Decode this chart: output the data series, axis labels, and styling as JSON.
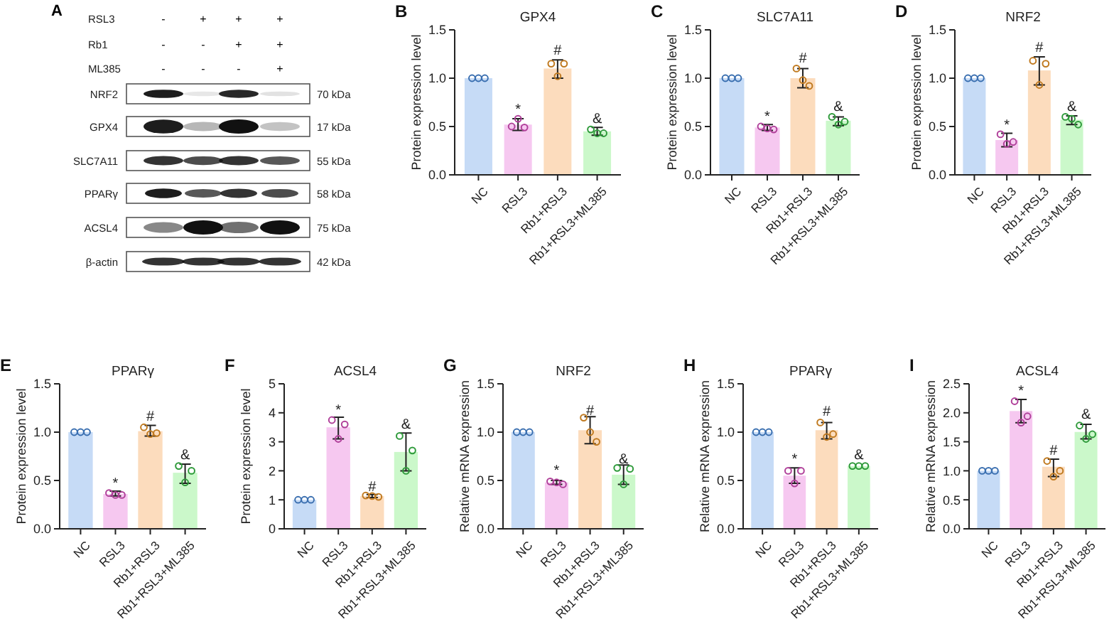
{
  "chart_data": [
    {
      "type": "other",
      "annotations": [
        "A",
        "RSL3",
        "Rb1",
        "ML385",
        "-",
        "+",
        "+",
        "+",
        "-",
        "-",
        "+",
        "+",
        "-",
        "-",
        "-",
        "+",
        "NRF2",
        "GPX4",
        "SLC7A11",
        "PPARγ",
        "ACSL4",
        "β-actin",
        "70  kDa",
        "17  kDa",
        "55  kDa",
        "58  kDa",
        "75  kDa",
        "42  kDa"
      ]
    },
    {
      "type": "bar",
      "title": "GPX4",
      "ylabel": "Protein expression level",
      "categories": [
        "NC",
        "RSL3",
        "Rb1+RSL3",
        "Rb1+RSL3+ML385"
      ],
      "ylim": [
        0,
        1.5
      ],
      "yticks": [
        {
          "value": 0,
          "label": "0.0"
        },
        {
          "value": 0.5,
          "label": "0.5"
        },
        {
          "value": 1,
          "label": "1.0"
        },
        {
          "value": 1.5,
          "label": "1.5"
        }
      ],
      "grid": false,
      "legend": false,
      "annotations": [
        "B",
        {
          "text": "*",
          "x": "RSL3",
          "y": 0.63
        },
        {
          "text": "#",
          "x": "Rb1+RSL3",
          "y": 1.24
        },
        {
          "text": "&",
          "x": "Rb1+RSL3+ML385",
          "y": 0.54
        }
      ],
      "series": [
        {
          "type": "bar",
          "values": [
            1,
            0.52,
            1.1,
            0.45
          ],
          "colors": [
            "#c6dbf6",
            "#f6c8f0",
            "#fcdcbd",
            "#cbf8ca"
          ],
          "errors": [
            null,
            [
              0.46,
              0.58
            ],
            [
              1.0,
              1.19
            ],
            [
              0.41,
              0.49
            ]
          ]
        },
        {
          "type": "scatter",
          "marker": "circle",
          "x": [
            "NC",
            "NC",
            "NC",
            "RSL3",
            "RSL3",
            "RSL3",
            "Rb1+RSL3",
            "Rb1+RSL3",
            "Rb1+RSL3",
            "Rb1+RSL3+ML385",
            "Rb1+RSL3+ML385",
            "Rb1+RSL3+ML385"
          ],
          "values": [
            1,
            1,
            1,
            0.5,
            0.58,
            0.49,
            1.15,
            1.02,
            1.15,
            0.47,
            0.43,
            0.43
          ],
          "colors": [
            "#3a6fb0",
            "#3a6fb0",
            "#3a6fb0",
            "#b0409a",
            "#b0409a",
            "#b0409a",
            "#c07a20",
            "#c07a20",
            "#c07a20",
            "#2e9a3a",
            "#2e9a3a",
            "#2e9a3a"
          ]
        }
      ]
    },
    {
      "type": "bar",
      "title": "SLC7A11",
      "ylabel": "Protein expression level",
      "categories": [
        "NC",
        "RSL3",
        "Rb1+RSL3",
        "Rb1+RSL3+ML385"
      ],
      "ylim": [
        0,
        1.5
      ],
      "yticks": [
        {
          "value": 0,
          "label": "0.0"
        },
        {
          "value": 0.5,
          "label": "0.5"
        },
        {
          "value": 1,
          "label": "1.0"
        },
        {
          "value": 1.5,
          "label": "1.5"
        }
      ],
      "grid": false,
      "legend": false,
      "annotations": [
        "C",
        {
          "text": "*",
          "x": "RSL3",
          "y": 0.56
        },
        {
          "text": "#",
          "x": "Rb1+RSL3",
          "y": 1.16
        },
        {
          "text": "&",
          "x": "Rb1+RSL3+ML385",
          "y": 0.66
        }
      ],
      "series": [
        {
          "type": "bar",
          "values": [
            1,
            0.49,
            1.0,
            0.56
          ],
          "colors": [
            "#c6dbf6",
            "#f6c8f0",
            "#fcdcbd",
            "#cbf8ca"
          ],
          "errors": [
            null,
            [
              0.46,
              0.52
            ],
            [
              0.9,
              1.1
            ],
            [
              0.51,
              0.6
            ]
          ]
        },
        {
          "type": "scatter",
          "marker": "circle",
          "x": [
            "NC",
            "NC",
            "NC",
            "RSL3",
            "RSL3",
            "RSL3",
            "Rb1+RSL3",
            "Rb1+RSL3",
            "Rb1+RSL3",
            "Rb1+RSL3+ML385",
            "Rb1+RSL3+ML385",
            "Rb1+RSL3+ML385"
          ],
          "values": [
            1,
            1,
            1,
            0.5,
            0.48,
            0.47,
            1.1,
            0.98,
            0.92,
            0.6,
            0.52,
            0.55
          ],
          "colors": [
            "#3a6fb0",
            "#3a6fb0",
            "#3a6fb0",
            "#b0409a",
            "#b0409a",
            "#b0409a",
            "#c07a20",
            "#c07a20",
            "#c07a20",
            "#2e9a3a",
            "#2e9a3a",
            "#2e9a3a"
          ]
        }
      ]
    },
    {
      "type": "bar",
      "title": "NRF2",
      "ylabel": "Protein expression level",
      "categories": [
        "NC",
        "RSL3",
        "Rb1+RSL3",
        "Rb1+RSL3+ML385"
      ],
      "ylim": [
        0,
        1.5
      ],
      "yticks": [
        {
          "value": 0,
          "label": "0.0"
        },
        {
          "value": 0.5,
          "label": "0.5"
        },
        {
          "value": 1,
          "label": "1.0"
        },
        {
          "value": 1.5,
          "label": "1.5"
        }
      ],
      "grid": false,
      "legend": false,
      "annotations": [
        "D",
        {
          "text": "*",
          "x": "RSL3",
          "y": 0.47
        },
        {
          "text": "#",
          "x": "Rb1+RSL3",
          "y": 1.27
        },
        {
          "text": "&",
          "x": "Rb1+RSL3+ML385",
          "y": 0.66
        }
      ],
      "series": [
        {
          "type": "bar",
          "values": [
            1,
            0.36,
            1.08,
            0.57
          ],
          "colors": [
            "#c6dbf6",
            "#f6c8f0",
            "#fcdcbd",
            "#cbf8ca"
          ],
          "errors": [
            null,
            [
              0.29,
              0.43
            ],
            [
              0.93,
              1.22
            ],
            [
              0.52,
              0.61
            ]
          ]
        },
        {
          "type": "scatter",
          "marker": "circle",
          "x": [
            "NC",
            "NC",
            "NC",
            "RSL3",
            "RSL3",
            "RSL3",
            "Rb1+RSL3",
            "Rb1+RSL3",
            "Rb1+RSL3",
            "Rb1+RSL3+ML385",
            "Rb1+RSL3+ML385",
            "Rb1+RSL3+ML385"
          ],
          "values": [
            1,
            1,
            1,
            0.42,
            0.32,
            0.34,
            1.18,
            0.93,
            1.15,
            0.6,
            0.58,
            0.52
          ],
          "colors": [
            "#3a6fb0",
            "#3a6fb0",
            "#3a6fb0",
            "#b0409a",
            "#b0409a",
            "#b0409a",
            "#c07a20",
            "#c07a20",
            "#c07a20",
            "#2e9a3a",
            "#2e9a3a",
            "#2e9a3a"
          ]
        }
      ]
    },
    {
      "type": "bar",
      "title": "PPARγ",
      "ylabel": "Protein expression level",
      "categories": [
        "NC",
        "RSL3",
        "Rb1+RSL3",
        "Rb1+RSL3+ML385"
      ],
      "ylim": [
        0,
        1.5
      ],
      "yticks": [
        {
          "value": 0,
          "label": "0.0"
        },
        {
          "value": 0.5,
          "label": "0.5"
        },
        {
          "value": 1,
          "label": "1.0"
        },
        {
          "value": 1.5,
          "label": "1.5"
        }
      ],
      "grid": false,
      "legend": false,
      "annotations": [
        "E",
        {
          "text": "*",
          "x": "RSL3",
          "y": 0.43
        },
        {
          "text": "#",
          "x": "Rb1+RSL3",
          "y": 1.12
        },
        {
          "text": "&",
          "x": "Rb1+RSL3+ML385",
          "y": 0.72
        }
      ],
      "series": [
        {
          "type": "bar",
          "values": [
            1,
            0.36,
            1.01,
            0.58
          ],
          "colors": [
            "#c6dbf6",
            "#f6c8f0",
            "#fcdcbd",
            "#cbf8ca"
          ],
          "errors": [
            null,
            [
              0.34,
              0.39
            ],
            [
              0.96,
              1.07
            ],
            [
              0.47,
              0.67
            ]
          ]
        },
        {
          "type": "scatter",
          "marker": "circle",
          "x": [
            "NC",
            "NC",
            "NC",
            "RSL3",
            "RSL3",
            "RSL3",
            "Rb1+RSL3",
            "Rb1+RSL3",
            "Rb1+RSL3",
            "Rb1+RSL3+ML385",
            "Rb1+RSL3+ML385",
            "Rb1+RSL3+ML385"
          ],
          "values": [
            1,
            1,
            1,
            0.37,
            0.35,
            0.35,
            1.05,
            0.98,
            0.99,
            0.65,
            0.48,
            0.6
          ],
          "colors": [
            "#3a6fb0",
            "#3a6fb0",
            "#3a6fb0",
            "#b0409a",
            "#b0409a",
            "#b0409a",
            "#c07a20",
            "#c07a20",
            "#c07a20",
            "#2e9a3a",
            "#2e9a3a",
            "#2e9a3a"
          ]
        }
      ]
    },
    {
      "type": "bar",
      "title": "ACSL4",
      "ylabel": "Protein expression level",
      "categories": [
        "NC",
        "RSL3",
        "Rb1+RSL3",
        "Rb1+RSL3+ML385"
      ],
      "ylim": [
        0,
        5
      ],
      "yticks": [
        0,
        1,
        2,
        3,
        4,
        5
      ],
      "grid": false,
      "legend": false,
      "annotations": [
        "F",
        {
          "text": "*",
          "x": "RSL3",
          "y": 3.95
        },
        {
          "text": "#",
          "x": "Rb1+RSL3",
          "y": 1.3
        },
        {
          "text": "&",
          "x": "Rb1+RSL3+ML385",
          "y": 3.45
        }
      ],
      "series": [
        {
          "type": "bar",
          "values": [
            1,
            3.5,
            1.13,
            2.65
          ],
          "colors": [
            "#c6dbf6",
            "#f6c8f0",
            "#fcdcbd",
            "#cbf8ca"
          ],
          "errors": [
            null,
            [
              3.1,
              3.85
            ],
            [
              1.08,
              1.18
            ],
            [
              2.0,
              3.3
            ]
          ]
        },
        {
          "type": "scatter",
          "marker": "circle",
          "x": [
            "NC",
            "NC",
            "NC",
            "RSL3",
            "RSL3",
            "RSL3",
            "Rb1+RSL3",
            "Rb1+RSL3",
            "Rb1+RSL3",
            "Rb1+RSL3+ML385",
            "Rb1+RSL3+ML385",
            "Rb1+RSL3+ML385"
          ],
          "values": [
            1,
            1,
            1,
            3.75,
            3.1,
            3.6,
            1.15,
            1.13,
            1.1,
            3.2,
            2.0,
            2.7
          ],
          "colors": [
            "#3a6fb0",
            "#3a6fb0",
            "#3a6fb0",
            "#b0409a",
            "#b0409a",
            "#b0409a",
            "#c07a20",
            "#c07a20",
            "#c07a20",
            "#2e9a3a",
            "#2e9a3a",
            "#2e9a3a"
          ]
        }
      ]
    },
    {
      "type": "bar",
      "title": "NRF2",
      "ylabel": "Relative mRNA expression",
      "categories": [
        "NC",
        "RSL3",
        "Rb1+RSL3",
        "Rb1+RSL3+ML385"
      ],
      "ylim": [
        0,
        1.5
      ],
      "yticks": [
        {
          "value": 0,
          "label": "0.0"
        },
        {
          "value": 0.5,
          "label": "0.5"
        },
        {
          "value": 1,
          "label": "1.0"
        },
        {
          "value": 1.5,
          "label": "1.5"
        }
      ],
      "grid": false,
      "legend": false,
      "annotations": [
        "G",
        {
          "text": "*",
          "x": "RSL3",
          "y": 0.56
        },
        {
          "text": "#",
          "x": "Rb1+RSL3",
          "y": 1.18
        },
        {
          "text": "&",
          "x": "Rb1+RSL3+ML385",
          "y": 0.68
        }
      ],
      "series": [
        {
          "type": "bar",
          "values": [
            1,
            0.48,
            1.02,
            0.56
          ],
          "colors": [
            "#c6dbf6",
            "#f6c8f0",
            "#fcdcbd",
            "#cbf8ca"
          ],
          "errors": [
            null,
            [
              0.46,
              0.5
            ],
            [
              0.88,
              1.16
            ],
            [
              0.46,
              0.66
            ]
          ]
        },
        {
          "type": "scatter",
          "marker": "circle",
          "x": [
            "NC",
            "NC",
            "NC",
            "RSL3",
            "RSL3",
            "RSL3",
            "Rb1+RSL3",
            "Rb1+RSL3",
            "Rb1+RSL3",
            "Rb1+RSL3+ML385",
            "Rb1+RSL3+ML385",
            "Rb1+RSL3+ML385"
          ],
          "values": [
            1,
            1,
            1,
            0.49,
            0.48,
            0.46,
            1.15,
            1.0,
            0.9,
            0.63,
            0.46,
            0.62
          ],
          "colors": [
            "#3a6fb0",
            "#3a6fb0",
            "#3a6fb0",
            "#b0409a",
            "#b0409a",
            "#b0409a",
            "#c07a20",
            "#c07a20",
            "#c07a20",
            "#2e9a3a",
            "#2e9a3a",
            "#2e9a3a"
          ]
        }
      ]
    },
    {
      "type": "bar",
      "title": "PPARγ",
      "ylabel": "Relative mRNA expression",
      "categories": [
        "NC",
        "RSL3",
        "Rb1+RSL3",
        "Rb1+RSL3+ML385"
      ],
      "ylim": [
        0,
        1.5
      ],
      "yticks": [
        {
          "value": 0,
          "label": "0.0"
        },
        {
          "value": 0.5,
          "label": "0.5"
        },
        {
          "value": 1,
          "label": "1.0"
        },
        {
          "value": 1.5,
          "label": "1.5"
        }
      ],
      "grid": false,
      "legend": false,
      "annotations": [
        "H",
        {
          "text": "*",
          "x": "RSL3",
          "y": 0.68
        },
        {
          "text": "#",
          "x": "Rb1+RSL3",
          "y": 1.17
        },
        {
          "text": "&",
          "x": "Rb1+RSL3+ML385",
          "y": 0.72
        }
      ],
      "series": [
        {
          "type": "bar",
          "values": [
            1,
            0.55,
            1.02,
            0.65
          ],
          "colors": [
            "#c6dbf6",
            "#f6c8f0",
            "#fcdcbd",
            "#cbf8ca"
          ],
          "errors": [
            null,
            [
              0.47,
              0.63
            ],
            [
              0.93,
              1.1
            ],
            null
          ]
        },
        {
          "type": "scatter",
          "marker": "circle",
          "x": [
            "NC",
            "NC",
            "NC",
            "RSL3",
            "RSL3",
            "RSL3",
            "Rb1+RSL3",
            "Rb1+RSL3",
            "Rb1+RSL3",
            "Rb1+RSL3+ML385",
            "Rb1+RSL3+ML385",
            "Rb1+RSL3+ML385"
          ],
          "values": [
            1,
            1,
            1,
            0.6,
            0.47,
            0.6,
            1.1,
            0.95,
            0.98,
            0.65,
            0.65,
            0.65
          ],
          "colors": [
            "#3a6fb0",
            "#3a6fb0",
            "#3a6fb0",
            "#b0409a",
            "#b0409a",
            "#b0409a",
            "#c07a20",
            "#c07a20",
            "#c07a20",
            "#2e9a3a",
            "#2e9a3a",
            "#2e9a3a"
          ]
        }
      ]
    },
    {
      "type": "bar",
      "title": "ACSL4",
      "ylabel": "Relative mRNA expression",
      "categories": [
        "NC",
        "RSL3",
        "Rb1+RSL3",
        "Rb1+RSL3+ML385"
      ],
      "ylim": [
        0,
        2.5
      ],
      "yticks": [
        {
          "value": 0,
          "label": "0.0"
        },
        {
          "value": 0.5,
          "label": "0.5"
        },
        {
          "value": 1,
          "label": "1.0"
        },
        {
          "value": 1.5,
          "label": "1.5"
        },
        {
          "value": 2,
          "label": "2.0"
        },
        {
          "value": 2.5,
          "label": "2.5"
        }
      ],
      "grid": false,
      "legend": false,
      "annotations": [
        "I",
        {
          "text": "*",
          "x": "RSL3",
          "y": 2.3
        },
        {
          "text": "#",
          "x": "Rb1+RSL3",
          "y": 1.28
        },
        {
          "text": "&",
          "x": "Rb1+RSL3+ML385",
          "y": 1.9
        }
      ],
      "series": [
        {
          "type": "bar",
          "values": [
            1,
            2.03,
            1.07,
            1.67
          ],
          "colors": [
            "#c6dbf6",
            "#f6c8f0",
            "#fcdcbd",
            "#cbf8ca"
          ],
          "errors": [
            null,
            [
              1.83,
              2.23
            ],
            [
              0.9,
              1.2
            ],
            [
              1.55,
              1.8
            ]
          ]
        },
        {
          "type": "scatter",
          "marker": "circle",
          "x": [
            "NC",
            "NC",
            "NC",
            "RSL3",
            "RSL3",
            "RSL3",
            "Rb1+RSL3",
            "Rb1+RSL3",
            "Rb1+RSL3",
            "Rb1+RSL3+ML385",
            "Rb1+RSL3+ML385",
            "Rb1+RSL3+ML385"
          ],
          "values": [
            1,
            1,
            1,
            2.2,
            1.83,
            1.94,
            1.17,
            0.9,
            1.0,
            1.78,
            1.55,
            1.63
          ],
          "colors": [
            "#3a6fb0",
            "#3a6fb0",
            "#3a6fb0",
            "#b0409a",
            "#b0409a",
            "#b0409a",
            "#c07a20",
            "#c07a20",
            "#c07a20",
            "#2e9a3a",
            "#2e9a3a",
            "#2e9a3a"
          ]
        }
      ]
    }
  ]
}
